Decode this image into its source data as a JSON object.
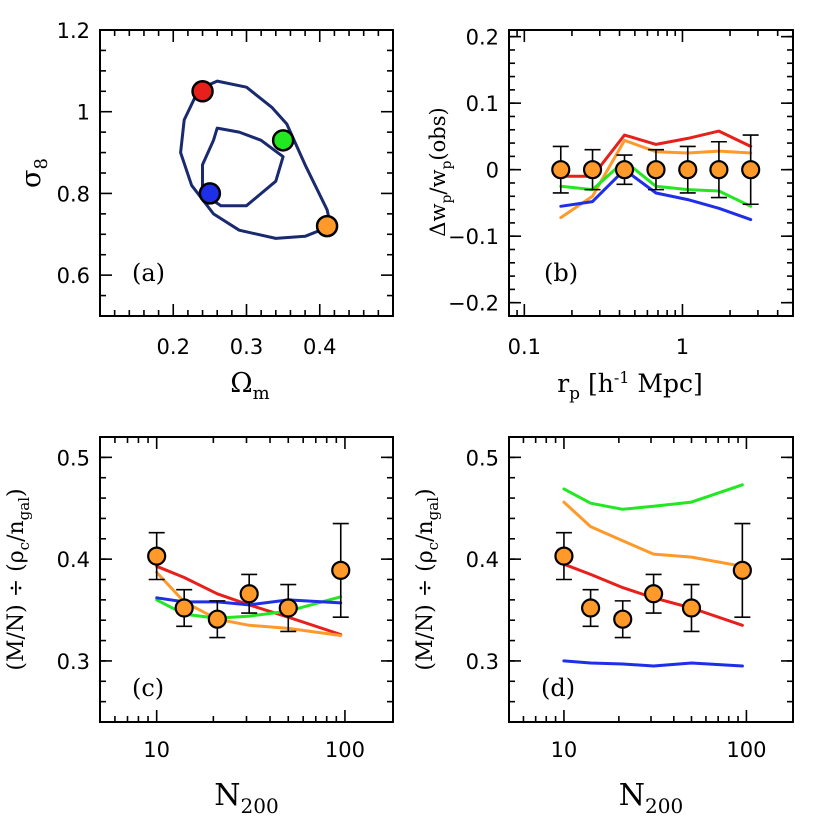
{
  "chart_data": [
    {
      "type": "line",
      "panel_label": "(a)",
      "xlabel": "Ωm",
      "ylabel": "σ8",
      "xlim": [
        0.1,
        0.5
      ],
      "ylim": [
        0.5,
        1.2
      ],
      "xticks": [
        0.2,
        0.3,
        0.4
      ],
      "xtick_labels": [
        "0.2",
        "0.3",
        "0.4"
      ],
      "yticks": [
        0.6,
        0.8,
        1.0,
        1.2
      ],
      "ytick_labels": [
        "0.6",
        "0.8",
        "1",
        "1.2"
      ],
      "contours": [
        {
          "x": [
            0.235,
            0.26,
            0.3,
            0.335,
            0.355,
            0.38,
            0.41,
            0.415,
            0.38,
            0.34,
            0.29,
            0.255,
            0.225,
            0.21,
            0.215,
            0.235
          ],
          "y": [
            1.055,
            1.075,
            1.06,
            1.01,
            0.97,
            0.87,
            0.76,
            0.72,
            0.695,
            0.69,
            0.71,
            0.75,
            0.82,
            0.9,
            0.98,
            1.055
          ]
        },
        {
          "x": [
            0.26,
            0.29,
            0.32,
            0.35,
            0.34,
            0.3,
            0.265,
            0.24,
            0.24,
            0.255,
            0.26
          ],
          "y": [
            0.96,
            0.95,
            0.93,
            0.89,
            0.83,
            0.77,
            0.77,
            0.8,
            0.87,
            0.93,
            0.96
          ]
        }
      ],
      "points": [
        {
          "x": 0.24,
          "y": 1.05,
          "color": "#e8201c"
        },
        {
          "x": 0.35,
          "y": 0.93,
          "color": "#22e822"
        },
        {
          "x": 0.25,
          "y": 0.8,
          "color": "#1f2ee8"
        },
        {
          "x": 0.41,
          "y": 0.72,
          "color": "#ff9a2a"
        }
      ]
    },
    {
      "type": "line",
      "panel_label": "(b)",
      "xlabel": "rp [h⁻¹ Mpc]",
      "ylabel": "Δwp/wp(obs)",
      "xscale": "log",
      "xlim": [
        0.08,
        5
      ],
      "ylim": [
        -0.22,
        0.21
      ],
      "xtick_labels": [
        "0.1",
        "1"
      ],
      "yticks": [
        -0.2,
        -0.1,
        0,
        0.1,
        0.2
      ],
      "ytick_labels": [
        "−0.2",
        "−0.1",
        "0",
        "0.1",
        "0.2"
      ],
      "x": [
        0.17,
        0.27,
        0.43,
        0.68,
        1.08,
        1.7,
        2.7
      ],
      "data": {
        "y": [
          0,
          0,
          0,
          0,
          0,
          0,
          0
        ],
        "err": [
          0.035,
          0.03,
          0.022,
          0.03,
          0.035,
          0.042,
          0.052
        ]
      },
      "series": [
        {
          "color": "#e8201c",
          "values": [
            -0.01,
            -0.01,
            0.052,
            0.038,
            0.047,
            0.058,
            0.035
          ]
        },
        {
          "color": "#ff9a2a",
          "values": [
            -0.072,
            -0.04,
            0.044,
            0.027,
            0.025,
            0.028,
            0.025
          ]
        },
        {
          "color": "#22e822",
          "values": [
            -0.025,
            -0.03,
            0.013,
            -0.025,
            -0.03,
            -0.032,
            -0.055
          ]
        },
        {
          "color": "#1f2ee8",
          "values": [
            -0.055,
            -0.048,
            0.0,
            -0.035,
            -0.045,
            -0.058,
            -0.075
          ]
        }
      ]
    },
    {
      "type": "line",
      "panel_label": "(c)",
      "xlabel": "N200",
      "ylabel": "(M/N) ÷ (ρc/ngal)",
      "xscale": "log",
      "xlim": [
        5,
        180
      ],
      "ylim": [
        0.24,
        0.52
      ],
      "xtick_labels": [
        "10",
        "100"
      ],
      "yticks": [
        0.3,
        0.4,
        0.5
      ],
      "ytick_labels": [
        "0.3",
        "0.4",
        "0.5"
      ],
      "x": [
        10,
        14,
        21,
        31,
        50,
        95
      ],
      "data": {
        "y": [
          0.403,
          0.352,
          0.341,
          0.366,
          0.352,
          0.389
        ],
        "err": [
          0.023,
          0.018,
          0.018,
          0.019,
          0.023,
          0.046
        ]
      },
      "series": [
        {
          "color": "#e8201c",
          "values": [
            0.393,
            0.382,
            0.366,
            0.355,
            0.343,
            0.326
          ]
        },
        {
          "color": "#ff9a2a",
          "values": [
            0.387,
            0.358,
            0.341,
            0.335,
            0.332,
            0.325
          ]
        },
        {
          "color": "#22e822",
          "values": [
            0.36,
            0.346,
            0.342,
            0.344,
            0.349,
            0.363
          ]
        },
        {
          "color": "#1f2ee8",
          "values": [
            0.362,
            0.358,
            0.358,
            0.355,
            0.36,
            0.357
          ]
        }
      ]
    },
    {
      "type": "line",
      "panel_label": "(d)",
      "xlabel": "N200",
      "ylabel": "(M/N) ÷ (ρc/ngal)",
      "xscale": "log",
      "xlim": [
        5,
        180
      ],
      "ylim": [
        0.24,
        0.52
      ],
      "xtick_labels": [
        "10",
        "100"
      ],
      "yticks": [
        0.3,
        0.4,
        0.5
      ],
      "ytick_labels": [
        "0.3",
        "0.4",
        "0.5"
      ],
      "x": [
        10,
        14,
        21,
        31,
        50,
        95
      ],
      "data": {
        "y": [
          0.403,
          0.352,
          0.341,
          0.366,
          0.352,
          0.389
        ],
        "err": [
          0.023,
          0.018,
          0.018,
          0.019,
          0.023,
          0.046
        ]
      },
      "series": [
        {
          "color": "#22e822",
          "values": [
            0.469,
            0.455,
            0.449,
            0.452,
            0.456,
            0.473
          ]
        },
        {
          "color": "#ff9a2a",
          "values": [
            0.456,
            0.432,
            0.418,
            0.405,
            0.402,
            0.393
          ]
        },
        {
          "color": "#e8201c",
          "values": [
            0.395,
            0.385,
            0.372,
            0.362,
            0.352,
            0.335
          ]
        },
        {
          "color": "#1f2ee8",
          "values": [
            0.3,
            0.298,
            0.297,
            0.295,
            0.298,
            0.295
          ]
        }
      ]
    }
  ],
  "colors": {
    "data_points": "#ff9a2a",
    "contour": "#1a2a6e"
  }
}
